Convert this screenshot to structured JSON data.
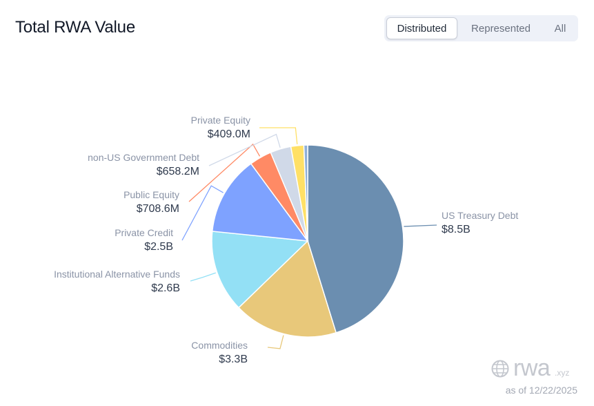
{
  "header": {
    "title": "Total RWA Value",
    "tabs": [
      {
        "label": "Distributed",
        "active": true
      },
      {
        "label": "Represented",
        "active": false
      },
      {
        "label": "All",
        "active": false
      }
    ]
  },
  "chart_data": {
    "type": "pie",
    "title": "Total RWA Value",
    "slices": [
      {
        "name": "US Treasury Debt",
        "value": 8.5,
        "display": "$8.5B",
        "color": "#6b8eb0"
      },
      {
        "name": "Commodities",
        "value": 3.3,
        "display": "$3.3B",
        "color": "#e8c87a"
      },
      {
        "name": "Institutional Alternative Funds",
        "value": 2.6,
        "display": "$2.6B",
        "color": "#93e0f5"
      },
      {
        "name": "Private Credit",
        "value": 2.5,
        "display": "$2.5B",
        "color": "#7ea2ff"
      },
      {
        "name": "Public Equity",
        "value": 0.7086,
        "display": "$708.6M",
        "color": "#ff8a65"
      },
      {
        "name": "non-US Government Debt",
        "value": 0.6582,
        "display": "$658.2M",
        "color": "#d0d9e8"
      },
      {
        "name": "Private Equity",
        "value": 0.409,
        "display": "$409.0M",
        "color": "#ffe066"
      },
      {
        "name": "",
        "value": 0.12,
        "display": "",
        "color": "#8fb0d8"
      }
    ]
  },
  "footer": {
    "brand": "rwa",
    "brand_tld": ".xyz",
    "as_of": "as of 12/22/2025"
  }
}
